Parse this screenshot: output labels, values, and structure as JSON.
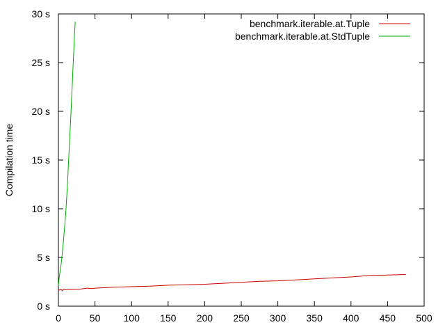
{
  "chart_data": {
    "type": "line",
    "xlabel": "",
    "ylabel": "Compilation time",
    "xlim": [
      0,
      500
    ],
    "ylim": [
      0,
      30
    ],
    "x_ticks": [
      0,
      50,
      100,
      150,
      200,
      250,
      300,
      350,
      400,
      450,
      500
    ],
    "y_ticks": [
      0,
      5,
      10,
      15,
      20,
      25,
      30
    ],
    "y_tick_labels": [
      "0 s",
      "5 s",
      "10 s",
      "15 s",
      "20 s",
      "25 s",
      "30 s"
    ],
    "grid": false,
    "legend_position": "top-right",
    "series": [
      {
        "name": "benchmark.iterable.at.Tuple",
        "color": "#cc0000",
        "x": [
          0,
          3,
          5,
          7,
          10,
          20,
          30,
          35,
          40,
          45,
          50,
          75,
          100,
          125,
          150,
          175,
          200,
          225,
          250,
          275,
          300,
          325,
          350,
          375,
          400,
          425,
          450,
          475
        ],
        "y": [
          1.6,
          1.75,
          1.6,
          1.75,
          1.7,
          1.72,
          1.75,
          1.8,
          1.85,
          1.8,
          1.85,
          1.95,
          2.0,
          2.05,
          2.15,
          2.2,
          2.25,
          2.35,
          2.45,
          2.55,
          2.6,
          2.7,
          2.8,
          2.9,
          3.0,
          3.15,
          3.2,
          3.25
        ]
      },
      {
        "name": "benchmark.iterable.at.StdTuple",
        "color": "#00aa00",
        "x": [
          0,
          1,
          2,
          3,
          4,
          5,
          6,
          7,
          8,
          9,
          10,
          11,
          12,
          13,
          14,
          15,
          16,
          17,
          18,
          19,
          20,
          21,
          22,
          23
        ],
        "y": [
          2.1,
          2.9,
          3.4,
          3.9,
          4.5,
          5.2,
          6.0,
          6.8,
          7.7,
          8.6,
          9.5,
          10.8,
          12.0,
          13.5,
          15.0,
          16.5,
          18.0,
          19.6,
          21.2,
          22.8,
          24.5,
          26.2,
          27.8,
          29.2
        ]
      }
    ]
  }
}
